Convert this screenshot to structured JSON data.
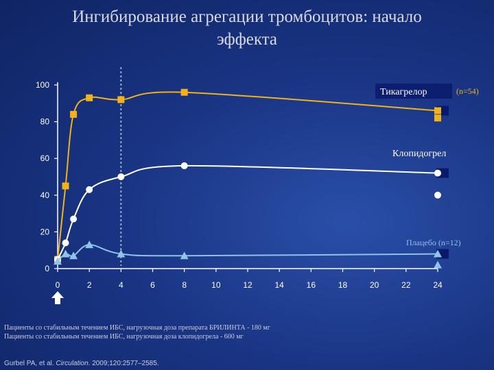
{
  "title": "Ингибирование агрегации тромбоцитов: начало эффекта",
  "notes": [
    "Пациенты со стабильным течением ИБС, нагрузочная доза препарата БРИЛИНТА - 180 мг",
    "Пациенты со стабильным течением ИБС, нагрузочная доза клопидогрела - 600 мг"
  ],
  "citation": {
    "prefix": "Gurbel PA, et al. ",
    "journal": "Circulation",
    "suffix": ". 2009;120:2577–2585."
  },
  "colors": {
    "ticagrelor": "#f2b21b",
    "clopidogrel": "#ffffff",
    "placebo": "#8ec4e6",
    "marker_dark": "#0a1a6a",
    "axis": "#ffffff",
    "dashed_line": "#9aa8c8",
    "arrow": "#ffffff"
  },
  "chart_data": {
    "type": "line",
    "title": "Ингибирование агрегации тромбоцитов: начало эффекта",
    "xlim": [
      0,
      24
    ],
    "ylim": [
      0,
      100
    ],
    "x_ticks": [
      0,
      2,
      4,
      6,
      8,
      10,
      12,
      14,
      16,
      18,
      20,
      22,
      24
    ],
    "y_ticks": [
      0,
      20,
      40,
      60,
      80,
      100
    ],
    "grid": false,
    "vertical_reference_line_x": 4,
    "dose_arrow_x": 0,
    "series": [
      {
        "name": "Тикагрелор",
        "annotation": "(n=54)",
        "marker": "square",
        "color_key": "ticagrelor",
        "x": [
          0,
          0.5,
          1,
          2,
          4,
          8,
          24
        ],
        "y": [
          5,
          45,
          84,
          93,
          92,
          96,
          86
        ],
        "end_marker_y": 82
      },
      {
        "name": "Клопидогрел",
        "marker": "circle",
        "color_key": "clopidogrel",
        "x": [
          0,
          0.5,
          1,
          2,
          4,
          8,
          24
        ],
        "y": [
          5,
          14,
          27,
          43,
          50,
          56,
          52
        ],
        "end_marker_y": 40
      },
      {
        "name": "Плацебо",
        "annotation": "(n=12)",
        "marker": "triangle",
        "color_key": "placebo",
        "x": [
          0,
          0.5,
          1,
          2,
          4,
          8,
          24
        ],
        "y": [
          4,
          8,
          7,
          13,
          8,
          7,
          8
        ],
        "end_marker_y": 2
      }
    ]
  }
}
